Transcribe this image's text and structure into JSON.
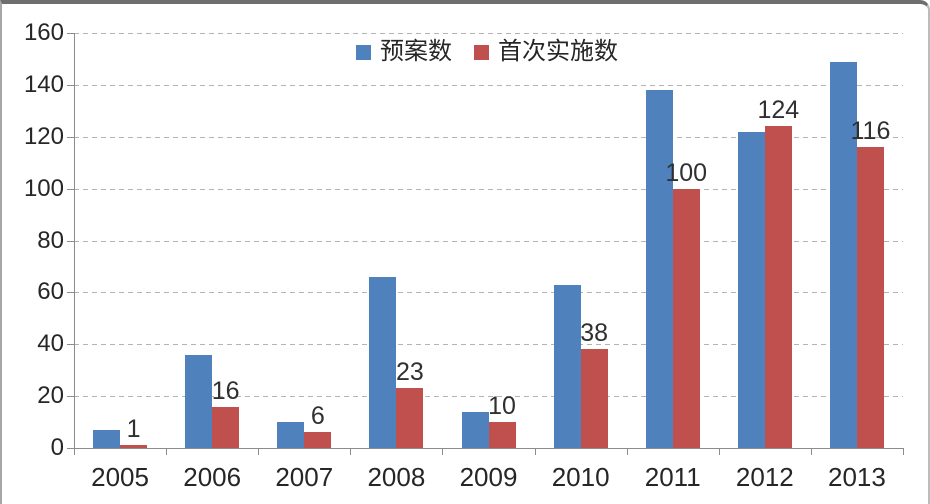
{
  "chart_data": {
    "type": "bar",
    "title": "",
    "xlabel": "",
    "ylabel": "",
    "categories": [
      "2005",
      "2006",
      "2007",
      "2008",
      "2009",
      "2010",
      "2011",
      "2012",
      "2013"
    ],
    "series": [
      {
        "name": "预案数",
        "color": "#4F81BD",
        "values": [
          7,
          36,
          10,
          66,
          14,
          63,
          138,
          122,
          149
        ],
        "data_labels": false
      },
      {
        "name": "首次实施数",
        "color": "#C0504D",
        "values": [
          1,
          16,
          6,
          23,
          10,
          38,
          100,
          124,
          116
        ],
        "data_labels": true
      }
    ],
    "ylim": [
      0,
      160
    ],
    "yticks": [
      0,
      20,
      40,
      60,
      80,
      100,
      120,
      140,
      160
    ],
    "grid": "horizontal-dashed",
    "legend_position": "top-center",
    "colors": {
      "axis": "#8c8c8c",
      "gridline": "#b3b3b3",
      "text": "#262626",
      "data_label_text": "#303030"
    }
  }
}
